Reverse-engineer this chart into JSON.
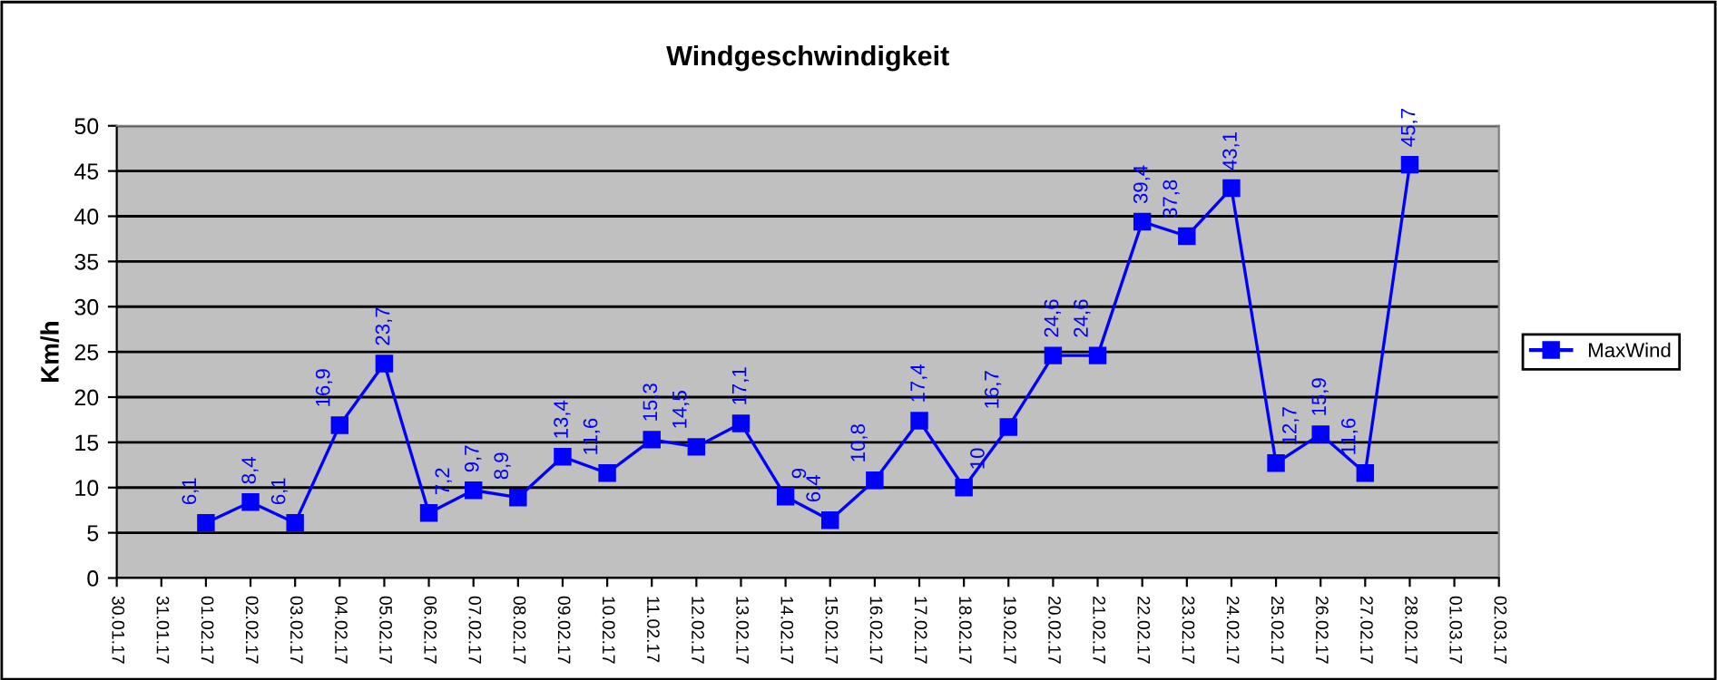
{
  "chart_data": {
    "type": "line",
    "title": "Windgeschwindigkeit",
    "ylabel": "Km/h",
    "categories": [
      "30.01.17",
      "31.01.17",
      "01.02.17",
      "02.02.17",
      "03.02.17",
      "04.02.17",
      "05.02.17",
      "06.02.17",
      "07.02.17",
      "08.02.17",
      "09.02.17",
      "10.02.17",
      "11.02.17",
      "12.02.17",
      "13.02.17",
      "14.02.17",
      "15.02.17",
      "16.02.17",
      "17.02.17",
      "18.02.17",
      "19.02.17",
      "20.02.17",
      "21.02.17",
      "22.02.17",
      "23.02.17",
      "24.02.17",
      "25.02.17",
      "26.02.17",
      "27.02.17",
      "28.02.17",
      "01.03.17",
      "02.03.17"
    ],
    "series": [
      {
        "name": "MaxWind",
        "color": "#0000ff",
        "values": [
          null,
          null,
          6.1,
          8.4,
          6.1,
          16.9,
          23.7,
          7.2,
          9.7,
          8.9,
          13.4,
          11.6,
          15.3,
          14.5,
          17.1,
          9,
          6.4,
          10.8,
          17.4,
          10,
          16.7,
          24.6,
          24.6,
          39.4,
          37.8,
          43.1,
          12.7,
          15.9,
          11.6,
          45.7,
          null,
          null
        ],
        "value_labels": [
          null,
          null,
          "6,1",
          "8,4",
          "6,1",
          "16,9",
          "23,7",
          "7,2",
          "9,7",
          "8,9",
          "13,4",
          "11,6",
          "15,3",
          "14,5",
          "17,1",
          "9",
          "6,4",
          "10,8",
          "17,4",
          "10",
          "16,7",
          "24,6",
          "24,6",
          "39,4",
          "37,8",
          "43,1",
          "12,7",
          "15,9",
          "11,6",
          "45,7",
          null,
          null
        ]
      }
    ],
    "ylim": [
      0,
      50
    ],
    "yticks": [
      0,
      5,
      10,
      15,
      20,
      25,
      30,
      35,
      40,
      45,
      50
    ],
    "grid": "y",
    "legend": "right",
    "marker": "square",
    "line_style": "solid"
  }
}
